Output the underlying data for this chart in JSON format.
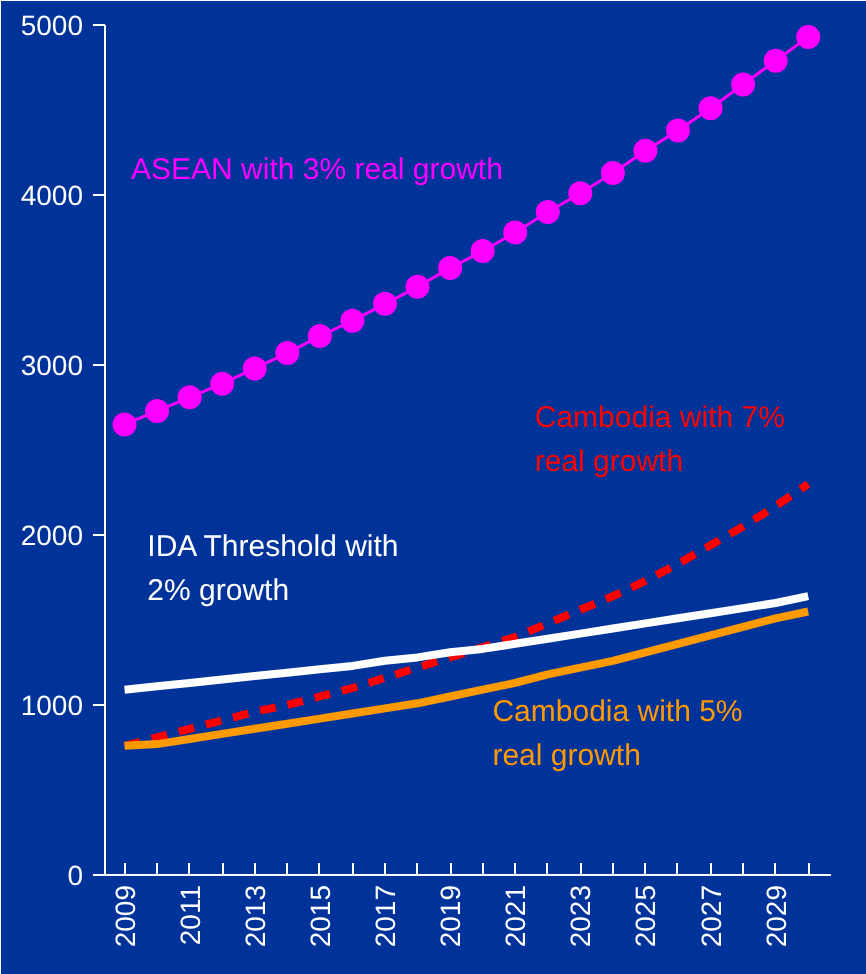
{
  "chart_data": {
    "type": "line",
    "categories": [
      "2009",
      null,
      "2011",
      null,
      "2013",
      null,
      "2015",
      null,
      "2017",
      null,
      "2019",
      null,
      "2021",
      null,
      "2023",
      null,
      "2025",
      null,
      "2027",
      null,
      "2029",
      null
    ],
    "ylim": [
      0,
      5000
    ],
    "yticks": [
      0,
      1000,
      2000,
      3000,
      4000,
      5000
    ],
    "grid": false,
    "legend": false,
    "series": [
      {
        "name": "ASEAN with 3% real growth",
        "color": "#ff00ff",
        "marker": "circle",
        "line_style": "solid",
        "values": [
          2650,
          2730,
          2810,
          2890,
          2980,
          3070,
          3170,
          3260,
          3360,
          3460,
          3570,
          3670,
          3780,
          3900,
          4010,
          4130,
          4260,
          4380,
          4510,
          4650,
          4790,
          4930
        ]
      },
      {
        "name": "Cambodia with 7%\nreal growth",
        "color": "#ff0000",
        "marker": "none",
        "line_style": "dashed",
        "values": [
          760,
          810,
          860,
          910,
          960,
          1000,
          1050,
          1100,
          1160,
          1220,
          1280,
          1340,
          1400,
          1480,
          1560,
          1640,
          1730,
          1830,
          1940,
          2050,
          2170,
          2300
        ]
      },
      {
        "name": "IDA Threshold with\n2% growth",
        "color": "#ffffff",
        "marker": "none",
        "line_style": "solid",
        "values": [
          1090,
          1110,
          1130,
          1150,
          1170,
          1190,
          1210,
          1230,
          1260,
          1280,
          1310,
          1330,
          1360,
          1390,
          1420,
          1450,
          1480,
          1510,
          1540,
          1570,
          1600,
          1640
        ]
      },
      {
        "name": "Cambodia with 5%\nreal growth",
        "color": "#ff9900",
        "marker": "none",
        "line_style": "solid",
        "values": [
          760,
          770,
          800,
          830,
          860,
          890,
          920,
          950,
          980,
          1010,
          1050,
          1090,
          1130,
          1180,
          1220,
          1260,
          1310,
          1360,
          1410,
          1460,
          1510,
          1550
        ]
      }
    ]
  }
}
